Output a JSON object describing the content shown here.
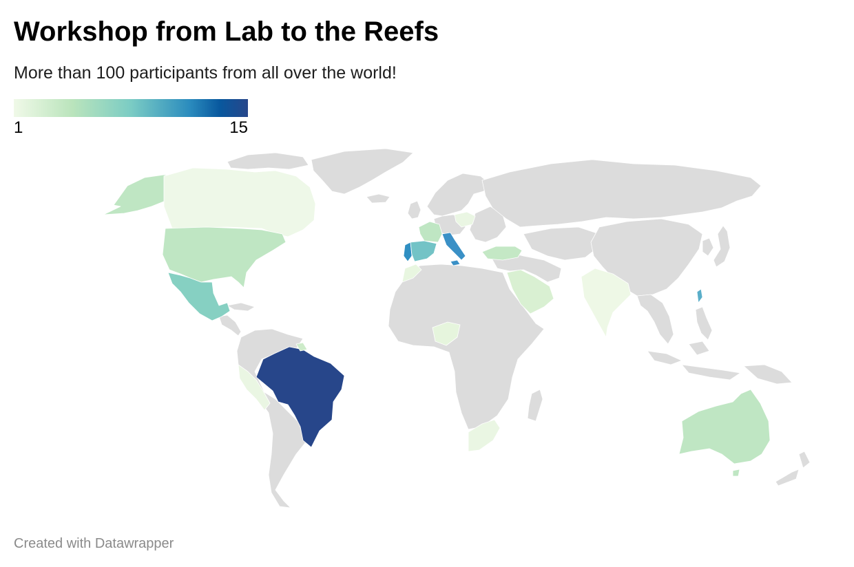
{
  "title": "Workshop from Lab to the Reefs",
  "subtitle": "More than 100 participants from all over the world!",
  "legend": {
    "min_label": "1",
    "max_label": "15",
    "colors": [
      "#f0f9e8",
      "#bae4bc",
      "#7bccc4",
      "#2b8cbe",
      "#08589e",
      "#27468a"
    ]
  },
  "map": {
    "no_data_color": "#dcdcdc",
    "highlighted": [
      {
        "id": "brazil",
        "color": "#27468a"
      },
      {
        "id": "italy",
        "color": "#3a90c6"
      },
      {
        "id": "portugal",
        "color": "#2f8fc2"
      },
      {
        "id": "taiwan",
        "color": "#5aaec9"
      },
      {
        "id": "spain",
        "color": "#73c3c6"
      },
      {
        "id": "mexico",
        "color": "#86d0c2"
      },
      {
        "id": "usa",
        "color": "#bfe6c3"
      },
      {
        "id": "australia",
        "color": "#bfe6c3"
      },
      {
        "id": "france",
        "color": "#bfe6c3"
      },
      {
        "id": "alaska",
        "color": "#bfe6c3"
      },
      {
        "id": "turkey",
        "color": "#c4e8c5"
      },
      {
        "id": "saudi-arabia",
        "color": "#d9f0d2"
      },
      {
        "id": "canada",
        "color": "#eef8e8"
      },
      {
        "id": "india",
        "color": "#eef8e6"
      },
      {
        "id": "nigeria",
        "color": "#e6f5dd"
      },
      {
        "id": "south-africa",
        "color": "#eaf6e3"
      },
      {
        "id": "peru",
        "color": "#eaf6e3"
      },
      {
        "id": "poland",
        "color": "#eaf6e3"
      },
      {
        "id": "suriname",
        "color": "#cdebc9"
      },
      {
        "id": "morocco",
        "color": "#e8f6e0"
      }
    ]
  },
  "footer": "Created with Datawrapper"
}
